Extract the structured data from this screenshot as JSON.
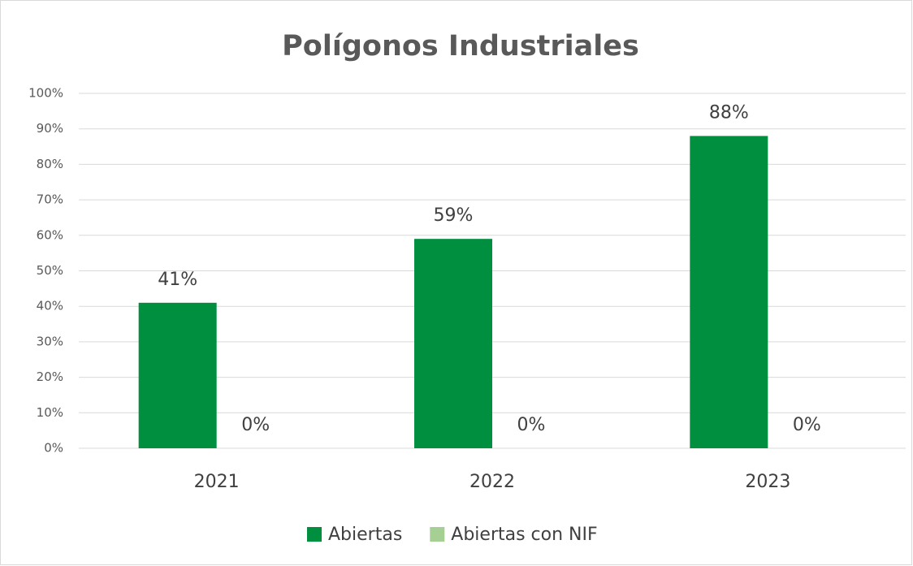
{
  "chart_data": {
    "type": "bar",
    "title": "Polígonos Industriales",
    "categories": [
      "2021",
      "2022",
      "2023"
    ],
    "series": [
      {
        "name": "Abiertas",
        "color": "#008f3f",
        "values": [
          41,
          59,
          88
        ],
        "value_labels": [
          "41%",
          "59%",
          "88%"
        ]
      },
      {
        "name": "Abiertas con NIF",
        "color": "#a6cf94",
        "values": [
          0,
          0,
          0
        ],
        "value_labels": [
          "0%",
          "0%",
          "0%"
        ]
      }
    ],
    "ylim": [
      0,
      100
    ],
    "yticks": [
      {
        "value": 0,
        "label": "0%"
      },
      {
        "value": 10,
        "label": "10%"
      },
      {
        "value": 20,
        "label": "20%"
      },
      {
        "value": 30,
        "label": "30%"
      },
      {
        "value": 40,
        "label": "40%"
      },
      {
        "value": 50,
        "label": "50%"
      },
      {
        "value": 60,
        "label": "60%"
      },
      {
        "value": 70,
        "label": "70%"
      },
      {
        "value": 80,
        "label": "80%"
      },
      {
        "value": 90,
        "label": "90%"
      },
      {
        "value": 100,
        "label": "100%"
      }
    ],
    "grid": true,
    "legend": "bottom"
  }
}
